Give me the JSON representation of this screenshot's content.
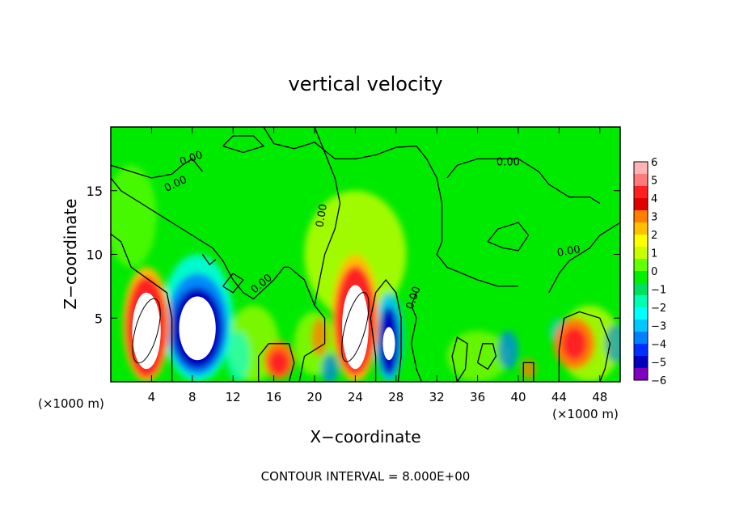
{
  "chart_data": {
    "type": "heatmap",
    "title": "vertical velocity",
    "xlabel": "X−coordinate",
    "ylabel": "Z−coordinate",
    "x_unit_left": "(×1000 m)",
    "x_unit_right": "(×1000 m)",
    "xlim": [
      0,
      50
    ],
    "ylim": [
      0,
      20
    ],
    "x_ticks": [
      "4",
      "8",
      "12",
      "16",
      "20",
      "24",
      "28",
      "32",
      "36",
      "40",
      "44",
      "48"
    ],
    "y_ticks": [
      "5",
      "10",
      "15"
    ],
    "colorbar": {
      "range": [
        -6,
        6
      ],
      "labels": [
        "6",
        "5",
        "4",
        "3",
        "2",
        "1",
        "0",
        "−1",
        "−2",
        "−3",
        "−4",
        "−5",
        "−6"
      ],
      "colors": [
        "#ffb4b4",
        "#ff7a7a",
        "#ff2020",
        "#e00000",
        "#ff7f00",
        "#ffc000",
        "#ffff00",
        "#c8ff00",
        "#64ff00",
        "#00f000",
        "#00e060",
        "#00ffb0",
        "#00ffff",
        "#00c8ff",
        "#0080ff",
        "#0030ff",
        "#0000c0",
        "#8000c0"
      ]
    },
    "contour_labels": [
      "0.00",
      "0.00",
      "0.00",
      "0.00",
      "0.00",
      "0.00",
      "0.00"
    ],
    "contour_interval_text": "CONTOUR INTERVAL = 8.000E+00",
    "grid": false,
    "cells": [
      {
        "x": 3.5,
        "z": 4.0,
        "w": 6
      },
      {
        "x": 8.5,
        "z": 4.0,
        "w": -6
      },
      {
        "x": 16.5,
        "z": 1.5,
        "w": 4
      },
      {
        "x": 24.0,
        "z": 4.5,
        "w": 6
      },
      {
        "x": 27.5,
        "z": 3.0,
        "w": -5
      },
      {
        "x": 45.5,
        "z": 3.0,
        "w": 5
      }
    ]
  }
}
